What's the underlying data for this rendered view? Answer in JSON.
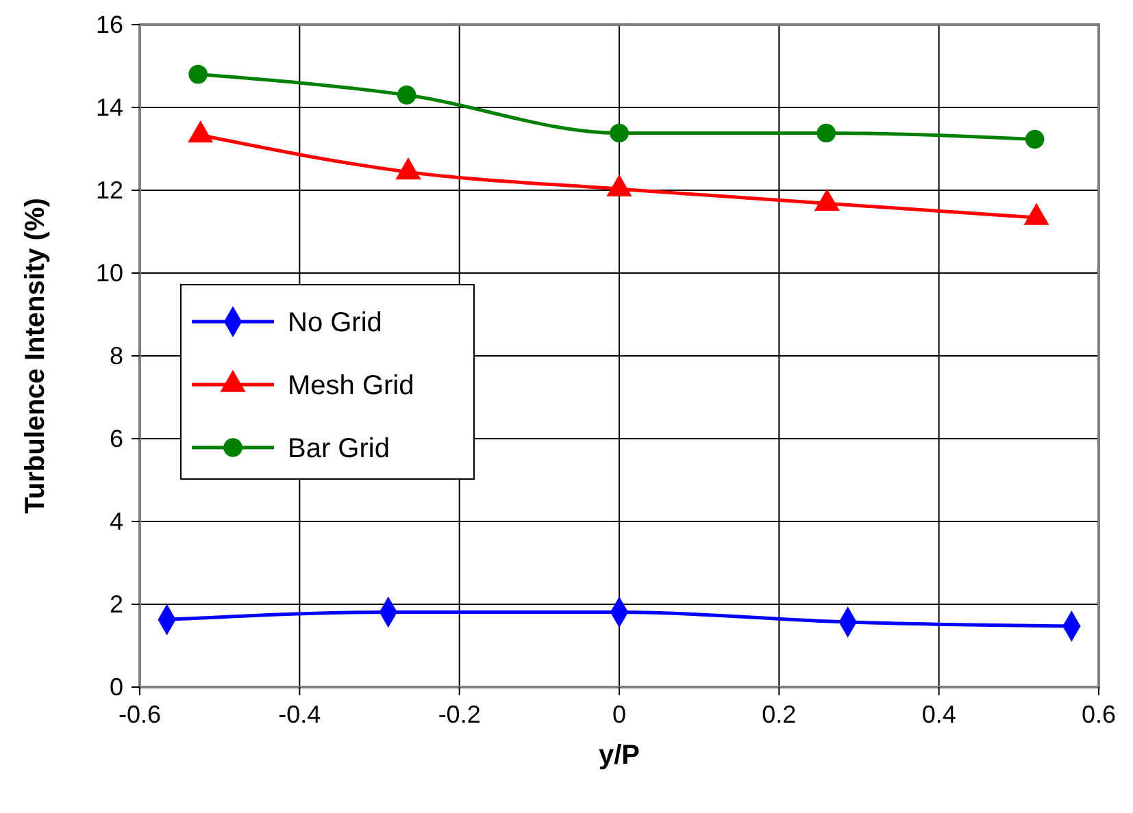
{
  "chart_data": {
    "type": "line",
    "xlabel": "y/P",
    "ylabel": "Turbulence Intensity (%)",
    "xlim": [
      -0.6,
      0.6
    ],
    "xticks": [
      -0.6,
      -0.4,
      -0.2,
      0,
      0.2,
      0.4,
      0.6
    ],
    "ylim": [
      0,
      16
    ],
    "yticks": [
      0,
      2,
      4,
      6,
      8,
      10,
      12,
      14,
      16
    ],
    "grid": true,
    "legend": "left",
    "series": [
      {
        "name": "No Grid",
        "color": "#0000ff",
        "marker": "diamond",
        "x": [
          -0.566,
          -0.289,
          0,
          0.286,
          0.566
        ],
        "values": [
          1.63,
          1.81,
          1.81,
          1.57,
          1.47
        ]
      },
      {
        "name": "Mesh Grid",
        "color": "#ff0000",
        "marker": "triangle",
        "x": [
          -0.524,
          -0.264,
          0,
          0.26,
          0.522
        ],
        "values": [
          13.33,
          12.44,
          12.03,
          11.68,
          11.34
        ]
      },
      {
        "name": "Bar Grid",
        "color": "#008000",
        "marker": "circle",
        "x": [
          -0.527,
          -0.266,
          0,
          0.259,
          0.52
        ],
        "values": [
          14.8,
          14.3,
          13.38,
          13.38,
          13.23
        ]
      }
    ]
  }
}
